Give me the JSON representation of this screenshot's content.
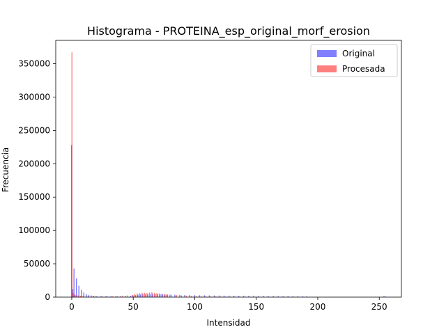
{
  "chart_data": {
    "type": "bar",
    "title": "Histograma - PROTEINA_esp_original_morf_erosion",
    "xlabel": "Intensidad",
    "ylabel": "Frecuencia",
    "xlim": [
      -13,
      268
    ],
    "ylim": [
      0,
      385000
    ],
    "xticks": [
      0,
      50,
      100,
      150,
      200,
      250
    ],
    "yticks": [
      0,
      50000,
      100000,
      150000,
      200000,
      250000,
      300000,
      350000
    ],
    "legend_position": "top-right",
    "grid": false,
    "series": [
      {
        "name": "Original",
        "color": "#0000ff",
        "opacity": 0.5,
        "points": [
          [
            0,
            228000
          ],
          [
            1,
            12000
          ],
          [
            2,
            43000
          ],
          [
            4,
            28000
          ],
          [
            6,
            17000
          ],
          [
            8,
            11000
          ],
          [
            10,
            7000
          ],
          [
            12,
            4500
          ],
          [
            14,
            3000
          ],
          [
            16,
            2500
          ],
          [
            18,
            2000
          ],
          [
            20,
            1800
          ],
          [
            24,
            1600
          ],
          [
            28,
            1500
          ],
          [
            32,
            1500
          ],
          [
            36,
            1500
          ],
          [
            40,
            1600
          ],
          [
            44,
            1800
          ],
          [
            48,
            2000
          ],
          [
            50,
            2500
          ],
          [
            52,
            3000
          ],
          [
            54,
            3500
          ],
          [
            56,
            4000
          ],
          [
            58,
            4200
          ],
          [
            60,
            4300
          ],
          [
            62,
            4500
          ],
          [
            64,
            4500
          ],
          [
            66,
            4500
          ],
          [
            68,
            4400
          ],
          [
            70,
            4300
          ],
          [
            72,
            4200
          ],
          [
            74,
            4000
          ],
          [
            76,
            3900
          ],
          [
            78,
            3800
          ],
          [
            80,
            3700
          ],
          [
            84,
            3500
          ],
          [
            88,
            3300
          ],
          [
            92,
            3100
          ],
          [
            96,
            3000
          ],
          [
            100,
            2900
          ],
          [
            104,
            2800
          ],
          [
            108,
            2700
          ],
          [
            112,
            2600
          ],
          [
            116,
            2500
          ],
          [
            120,
            2400
          ],
          [
            124,
            2300
          ],
          [
            128,
            2200
          ],
          [
            132,
            2100
          ],
          [
            136,
            2000
          ],
          [
            140,
            2000
          ],
          [
            144,
            1900
          ],
          [
            148,
            1900
          ],
          [
            152,
            1800
          ],
          [
            156,
            1800
          ],
          [
            160,
            1700
          ],
          [
            164,
            1700
          ],
          [
            168,
            1600
          ],
          [
            172,
            1500
          ],
          [
            176,
            1500
          ],
          [
            180,
            1400
          ],
          [
            184,
            1300
          ],
          [
            188,
            1200
          ],
          [
            191,
            1000
          ],
          [
            254,
            1500
          ]
        ]
      },
      {
        "name": "Procesada",
        "color": "#ff0000",
        "opacity": 0.5,
        "points": [
          [
            0,
            367000
          ],
          [
            1,
            6000
          ],
          [
            2,
            4000
          ],
          [
            3,
            3000
          ],
          [
            5,
            2500
          ],
          [
            7,
            2000
          ],
          [
            9,
            1500
          ],
          [
            13,
            1200
          ],
          [
            17,
            1000
          ],
          [
            21,
            900
          ],
          [
            25,
            900
          ],
          [
            29,
            1000
          ],
          [
            33,
            1200
          ],
          [
            37,
            1500
          ],
          [
            41,
            2000
          ],
          [
            45,
            2500
          ],
          [
            49,
            3500
          ],
          [
            51,
            4500
          ],
          [
            53,
            5500
          ],
          [
            55,
            6000
          ],
          [
            57,
            6500
          ],
          [
            59,
            6500
          ],
          [
            61,
            6000
          ],
          [
            63,
            7000
          ],
          [
            65,
            7500
          ],
          [
            67,
            6500
          ],
          [
            69,
            6000
          ],
          [
            71,
            5500
          ],
          [
            73,
            5000
          ],
          [
            75,
            4500
          ],
          [
            77,
            4000
          ],
          [
            81,
            3500
          ],
          [
            85,
            3000
          ],
          [
            89,
            2500
          ],
          [
            93,
            2200
          ],
          [
            97,
            2000
          ],
          [
            101,
            1800
          ],
          [
            105,
            1500
          ],
          [
            109,
            1300
          ],
          [
            113,
            1100
          ],
          [
            117,
            1000
          ],
          [
            121,
            900
          ],
          [
            125,
            800
          ],
          [
            129,
            700
          ],
          [
            133,
            600
          ],
          [
            137,
            500
          ],
          [
            141,
            400
          ],
          [
            145,
            300
          ],
          [
            149,
            200
          ],
          [
            255,
            1000
          ]
        ]
      }
    ]
  }
}
